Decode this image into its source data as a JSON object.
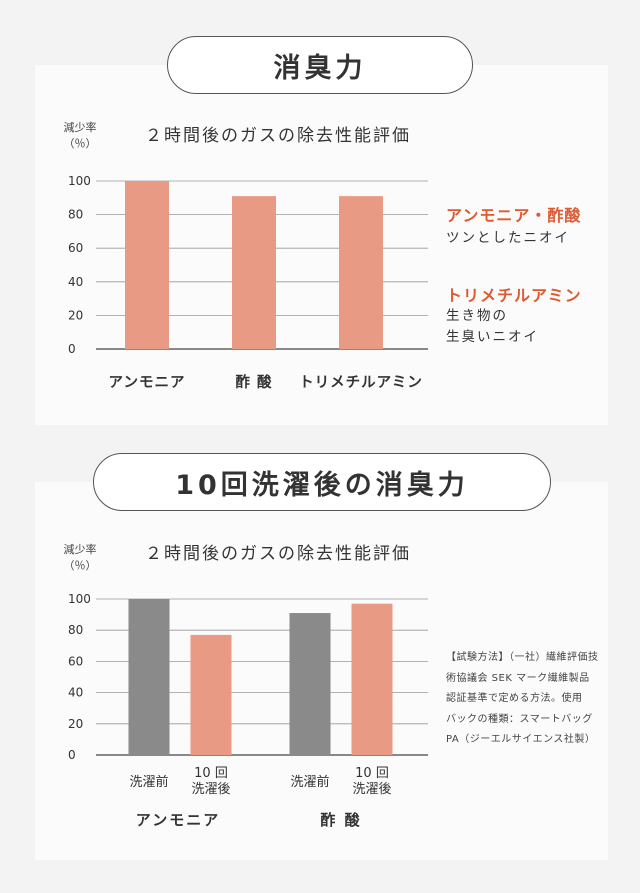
{
  "colors": {
    "salmon": "#e89a85",
    "gray": "#8a8a8a",
    "accent": "#dd5a33"
  },
  "section1": {
    "title": "消臭力",
    "notes": {
      "a_title": "アンモニア・酢酸",
      "a_desc": "ツンとしたニオイ",
      "b_title": "トリメチルアミン",
      "b_desc1": "生き物の",
      "b_desc2": "生臭いニオイ"
    }
  },
  "section2": {
    "title": "10回洗濯後の消臭力",
    "method": [
      "【試験方法】（一社）繊維評価技",
      "術協議会 SEK マーク繊維製品",
      "認証基準で定める方法。使用",
      "バックの種類：スマートバッグ",
      "PA（ジーエルサイエンス社製）"
    ]
  },
  "chart_data": [
    {
      "type": "bar",
      "title": "２時間後のガスの除去性能評価",
      "ylabel": [
        "減少率",
        "（％）"
      ],
      "ylim": [
        0,
        100
      ],
      "yticks": [
        0,
        20,
        40,
        60,
        80,
        100
      ],
      "grid": true,
      "categories": [
        "アンモニア",
        "酢 酸",
        "トリメチルアミン"
      ],
      "values": [
        100,
        91,
        91
      ]
    },
    {
      "type": "bar",
      "title": "２時間後のガスの除去性能評価",
      "ylabel": [
        "減少率",
        "（％）"
      ],
      "ylim": [
        0,
        100
      ],
      "yticks": [
        0,
        20,
        40,
        60,
        80,
        100
      ],
      "grid": true,
      "groups": [
        {
          "label": "アンモニア",
          "bars": [
            {
              "label": [
                "洗濯前"
              ],
              "value": 100,
              "kind": "before"
            },
            {
              "label": [
                "10 回",
                "洗濯後"
              ],
              "value": 77,
              "kind": "after"
            }
          ]
        },
        {
          "label": "酢 酸",
          "bars": [
            {
              "label": [
                "洗濯前"
              ],
              "value": 91,
              "kind": "before"
            },
            {
              "label": [
                "10 回",
                "洗濯後"
              ],
              "value": 97,
              "kind": "after"
            }
          ]
        }
      ]
    }
  ]
}
